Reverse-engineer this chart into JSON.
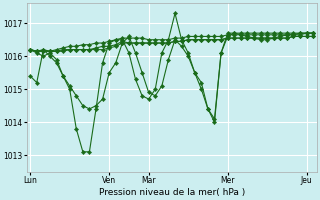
{
  "background_color": "#cceef0",
  "grid_color": "#ffffff",
  "line_color": "#1a6b1a",
  "marker": "D",
  "marker_size": 2.2,
  "xlabel": "Pression niveau de la mer( hPa )",
  "ylim": [
    1012.5,
    1017.6
  ],
  "yticks": [
    1013,
    1014,
    1015,
    1016,
    1017
  ],
  "xtick_labels": [
    "Lun",
    "Ven",
    "Mar",
    "Mer",
    "Jeu"
  ],
  "xtick_positions": [
    0,
    12,
    18,
    30,
    42
  ],
  "n_points": 44,
  "series": [
    [
      1015.4,
      1015.2,
      1016.2,
      1016.0,
      1015.8,
      1015.4,
      1015.1,
      1014.8,
      1014.5,
      1014.4,
      1014.5,
      1014.7,
      1015.5,
      1015.8,
      1016.4,
      1016.6,
      1016.1,
      1015.5,
      1014.9,
      1014.8,
      1015.1,
      1015.9,
      1016.5,
      1016.3,
      1016.0,
      1015.5,
      1015.0,
      1014.4,
      1014.1,
      1016.1,
      1016.6,
      1016.7,
      1016.7,
      1016.7,
      1016.7,
      1016.7,
      1016.7,
      1016.7,
      1016.7,
      1016.7,
      1016.7,
      1016.7,
      1016.7,
      1016.7
    ],
    [
      1016.2,
      1016.15,
      1016.2,
      1016.15,
      1016.2,
      1016.25,
      1016.3,
      1016.3,
      1016.35,
      1016.35,
      1016.4,
      1016.4,
      1016.45,
      1016.5,
      1016.55,
      1016.55,
      1016.55,
      1016.55,
      1016.5,
      1016.5,
      1016.5,
      1016.5,
      1016.55,
      1016.55,
      1016.6,
      1016.6,
      1016.6,
      1016.6,
      1016.6,
      1016.6,
      1016.65,
      1016.65,
      1016.65,
      1016.65,
      1016.65,
      1016.65,
      1016.65,
      1016.65,
      1016.65,
      1016.65,
      1016.65,
      1016.65,
      1016.7,
      1016.7
    ],
    [
      1016.2,
      1016.15,
      1016.15,
      1016.15,
      1016.15,
      1016.2,
      1016.2,
      1016.2,
      1016.2,
      1016.2,
      1016.25,
      1016.3,
      1016.3,
      1016.35,
      1016.45,
      1016.4,
      1016.4,
      1016.4,
      1016.4,
      1016.4,
      1016.4,
      1016.4,
      1016.45,
      1016.45,
      1016.5,
      1016.5,
      1016.5,
      1016.5,
      1016.5,
      1016.5,
      1016.55,
      1016.55,
      1016.55,
      1016.55,
      1016.55,
      1016.55,
      1016.55,
      1016.55,
      1016.55,
      1016.55,
      1016.6,
      1016.6,
      1016.6,
      1016.6
    ],
    [
      1016.2,
      1016.15,
      1016.15,
      1016.15,
      1016.15,
      1016.15,
      1016.2,
      1016.2,
      1016.2,
      1016.2,
      1016.2,
      1016.2,
      1016.25,
      1016.3,
      1016.4,
      1016.4,
      1016.4,
      1016.4,
      1016.4,
      1016.4,
      1016.4,
      1016.4,
      1016.45,
      1016.45,
      1016.5,
      1016.5,
      1016.5,
      1016.5,
      1016.5,
      1016.5,
      1016.55,
      1016.55,
      1016.55,
      1016.55,
      1016.55,
      1016.55,
      1016.55,
      1016.55,
      1016.55,
      1016.55,
      1016.6,
      1016.6,
      1016.6,
      1016.6
    ],
    [
      1016.2,
      1016.1,
      1016.0,
      1016.1,
      1015.9,
      1015.4,
      1015.0,
      1013.8,
      1013.1,
      1013.1,
      1014.4,
      1015.8,
      1016.4,
      1016.5,
      1016.5,
      1016.1,
      1015.3,
      1014.8,
      1014.7,
      1015.0,
      1016.1,
      1016.5,
      1017.3,
      1016.5,
      1016.1,
      1015.5,
      1015.2,
      1014.4,
      1014.0,
      1016.1,
      1016.7,
      1016.7,
      1016.65,
      1016.6,
      1016.55,
      1016.5,
      1016.5,
      1016.55,
      1016.6,
      1016.65,
      1016.65,
      1016.7,
      1016.7,
      1016.7
    ]
  ]
}
